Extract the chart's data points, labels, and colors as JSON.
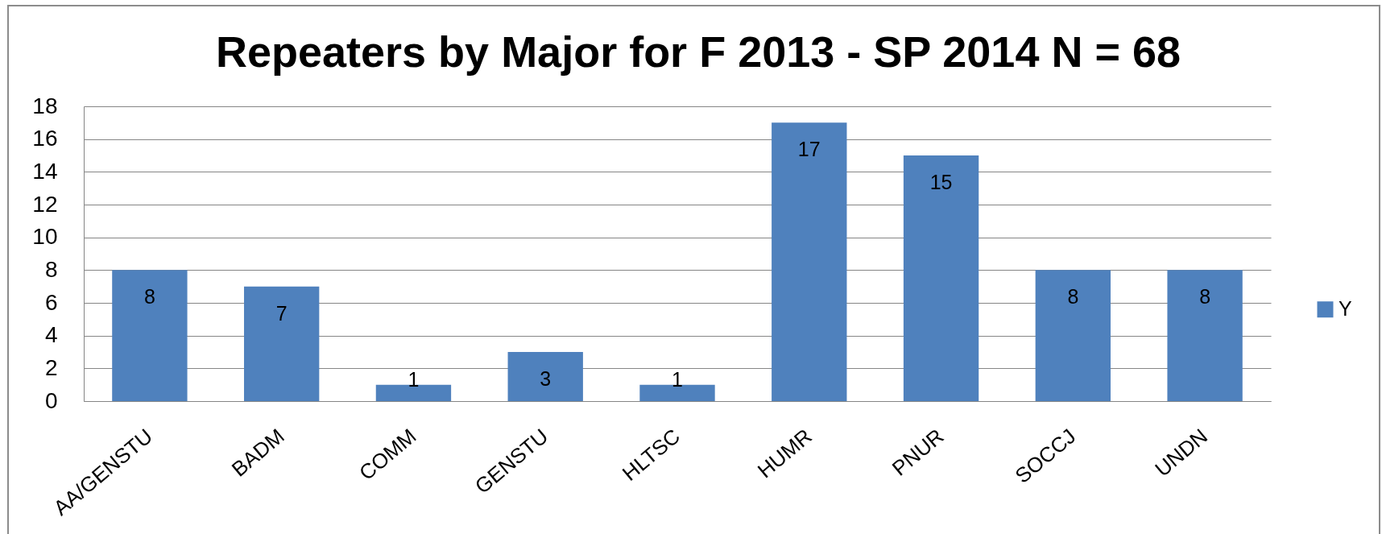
{
  "chart_data": {
    "type": "bar",
    "title": "Repeaters by Major for F 2013 - SP 2014 N = 68",
    "categories": [
      "AA/GENSTU",
      "BADM",
      "COMM",
      "GENSTU",
      "HLTSC",
      "HUMR",
      "PNUR",
      "SOCCJ",
      "UNDN"
    ],
    "series": [
      {
        "name": "Y",
        "color": "#4f81bd",
        "values": [
          8,
          7,
          1,
          3,
          1,
          17,
          15,
          8,
          8
        ]
      }
    ],
    "ylim": [
      0,
      18
    ],
    "yticks": [
      0,
      2,
      4,
      6,
      8,
      10,
      12,
      14,
      16,
      18
    ],
    "grid": "y",
    "legend": "right",
    "data_labels": true
  }
}
